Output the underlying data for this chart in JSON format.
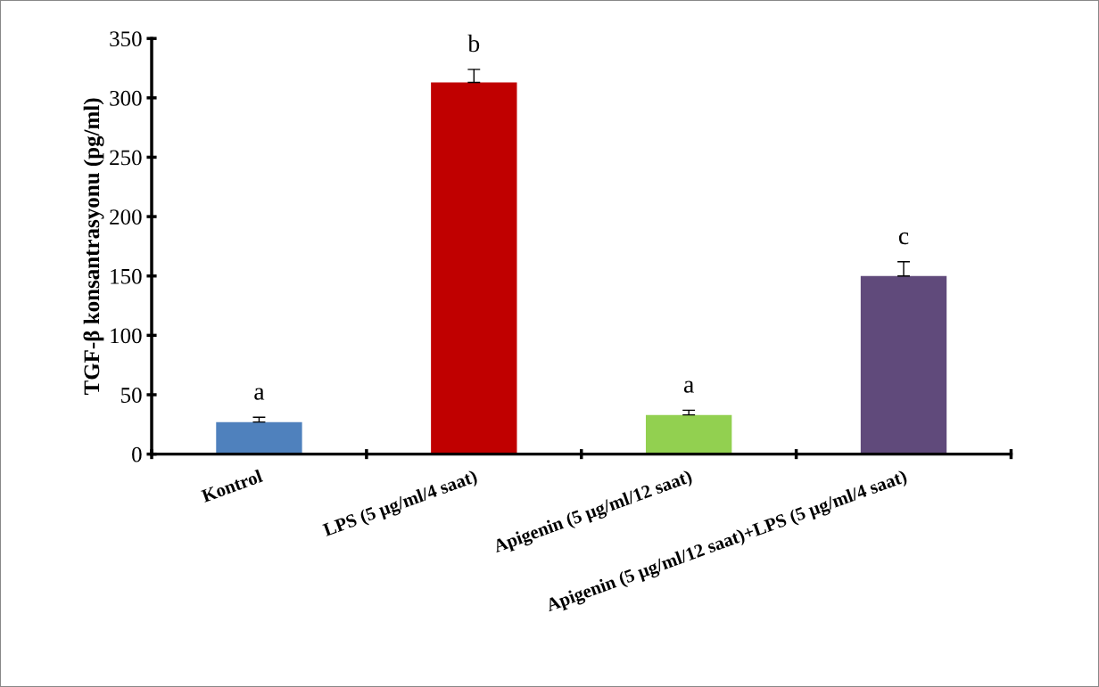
{
  "chart_data": {
    "type": "bar",
    "ylabel": "TGF-β konsantrasyonu (pg/ml)",
    "categories": [
      "Kontrol",
      "LPS (5 µg/ml/4 saat)",
      "Apigenin (5 µg/ml/12 saat)",
      "Apigenin (5 µg/ml/12 saat)+LPS (5 µg/ml/4 saat)"
    ],
    "values": [
      27,
      313,
      33,
      150
    ],
    "errors": [
      4,
      11,
      4,
      12
    ],
    "colors": [
      "#4f81bd",
      "#c00000",
      "#92d050",
      "#604a7b"
    ],
    "ylim": [
      0,
      350
    ],
    "yticks": [
      0,
      50,
      100,
      150,
      200,
      250,
      300,
      350
    ],
    "annotations": [
      {
        "text": "a",
        "x": "Kontrol",
        "y": 31
      },
      {
        "text": "b",
        "x": "LPS (5 µg/ml/4 saat)",
        "y": 324
      },
      {
        "text": "a",
        "x": "Apigenin (5 µg/ml/12 saat)",
        "y": 37
      },
      {
        "text": "c",
        "x": "Apigenin (5 µg/ml/12 saat)+LPS (5 µg/ml/4 saat)",
        "y": 162
      }
    ],
    "grid": false
  }
}
